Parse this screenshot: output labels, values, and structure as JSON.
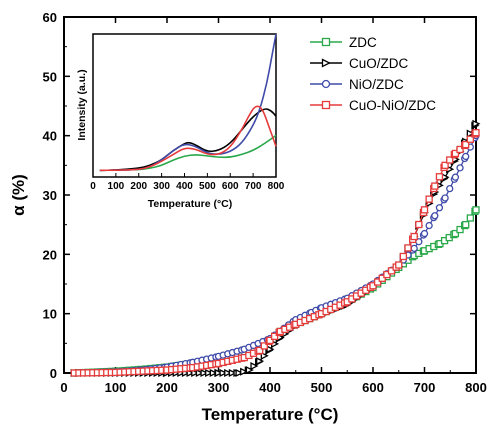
{
  "chart_data": [
    {
      "type": "scatter",
      "xlabel": "Temperature (°C)",
      "ylabel": "α (%)",
      "xlim": [
        0,
        800
      ],
      "ylim": [
        0,
        60
      ],
      "xticks": [
        0,
        100,
        200,
        300,
        400,
        500,
        600,
        700,
        800
      ],
      "yticks": [
        0,
        10,
        20,
        30,
        40,
        50,
        60
      ],
      "legend": "top-right",
      "grid": false,
      "series": [
        {
          "name": "ZDC",
          "color": "#2aa84a",
          "marker": "square",
          "x": [
            20,
            100,
            150,
            200,
            250,
            300,
            350,
            380,
            400,
            420,
            450,
            500,
            550,
            600,
            650,
            680,
            700,
            730,
            760,
            780,
            800
          ],
          "y": [
            0,
            0.3,
            0.6,
            1.0,
            1.6,
            2.4,
            3.4,
            4.3,
            5.5,
            7.0,
            8.2,
            10.0,
            12.0,
            14.4,
            17.8,
            19.8,
            20.6,
            21.8,
            23.5,
            25.0,
            27.5
          ]
        },
        {
          "name": "CuO/ZDC",
          "color": "#000000",
          "marker": "triangle-right",
          "x": [
            20,
            100,
            200,
            300,
            340,
            360,
            380,
            400,
            420,
            450,
            500,
            550,
            600,
            650,
            680,
            700,
            720,
            740,
            760,
            780,
            800
          ],
          "y": [
            0,
            0,
            0,
            0,
            0,
            0.5,
            2.0,
            4.0,
            6.0,
            8.0,
            9.8,
            11.5,
            14.5,
            18.0,
            23.0,
            27.0,
            30.5,
            33.0,
            36.0,
            39.0,
            42.0
          ]
        },
        {
          "name": "NiO/ZDC",
          "color": "#3f4ba8",
          "marker": "circle",
          "x": [
            20,
            100,
            150,
            200,
            250,
            300,
            350,
            400,
            450,
            480,
            500,
            550,
            600,
            650,
            680,
            700,
            720,
            740,
            760,
            780,
            800
          ],
          "y": [
            0,
            0.2,
            0.5,
            1.0,
            1.8,
            2.8,
            4.0,
            5.8,
            9.0,
            10.2,
            11.0,
            12.6,
            15.0,
            18.2,
            21.0,
            23.5,
            26.5,
            29.5,
            33.0,
            36.5,
            40.0
          ]
        },
        {
          "name": "CuO-NiO/ZDC",
          "color": "#e53b3b",
          "marker": "square",
          "x": [
            20,
            100,
            200,
            250,
            300,
            350,
            380,
            400,
            420,
            450,
            500,
            550,
            600,
            650,
            680,
            700,
            720,
            740,
            760,
            780,
            800
          ],
          "y": [
            0,
            0.1,
            0.5,
            0.9,
            1.6,
            2.6,
            3.8,
            5.5,
            7.0,
            8.2,
            10.0,
            12.0,
            14.7,
            18.2,
            23.0,
            27.5,
            31.5,
            35.0,
            37.0,
            38.5,
            40.5
          ]
        }
      ]
    },
    {
      "type": "line",
      "xlabel": "Temperature (°C)",
      "ylabel": "Intensity (a.u.)",
      "xlim": [
        0,
        800
      ],
      "ylim": [
        0,
        1
      ],
      "xticks": [
        0,
        100,
        200,
        300,
        400,
        500,
        600,
        700,
        800
      ],
      "grid": false,
      "series": [
        {
          "name": "ZDC",
          "color": "#2aa84a",
          "x": [
            30,
            100,
            200,
            250,
            300,
            350,
            400,
            450,
            500,
            550,
            600,
            650,
            700,
            750,
            800
          ],
          "y": [
            0.005,
            0.006,
            0.01,
            0.02,
            0.04,
            0.08,
            0.11,
            0.12,
            0.11,
            0.1,
            0.1,
            0.12,
            0.15,
            0.2,
            0.26
          ]
        },
        {
          "name": "CuO/ZDC",
          "color": "#000000",
          "x": [
            30,
            100,
            200,
            250,
            300,
            350,
            400,
            420,
            450,
            500,
            550,
            600,
            650,
            700,
            750,
            780,
            800
          ],
          "y": [
            0.005,
            0.006,
            0.02,
            0.04,
            0.08,
            0.15,
            0.2,
            0.21,
            0.19,
            0.14,
            0.15,
            0.2,
            0.3,
            0.4,
            0.46,
            0.44,
            0.4
          ]
        },
        {
          "name": "NiO/ZDC",
          "color": "#3f4ba8",
          "x": [
            30,
            100,
            200,
            250,
            300,
            350,
            400,
            450,
            500,
            550,
            600,
            650,
            700,
            730,
            760,
            780,
            800
          ],
          "y": [
            0.005,
            0.006,
            0.01,
            0.03,
            0.08,
            0.15,
            0.2,
            0.18,
            0.13,
            0.12,
            0.14,
            0.2,
            0.33,
            0.45,
            0.64,
            0.82,
            1.0
          ]
        },
        {
          "name": "CuO-NiO/ZDC",
          "color": "#e53b3b",
          "x": [
            30,
            100,
            200,
            250,
            300,
            350,
            400,
            450,
            500,
            550,
            600,
            650,
            680,
            710,
            740,
            770,
            800
          ],
          "y": [
            0.005,
            0.006,
            0.01,
            0.03,
            0.07,
            0.12,
            0.17,
            0.16,
            0.12,
            0.12,
            0.17,
            0.3,
            0.4,
            0.48,
            0.46,
            0.32,
            0.18
          ]
        }
      ]
    }
  ]
}
